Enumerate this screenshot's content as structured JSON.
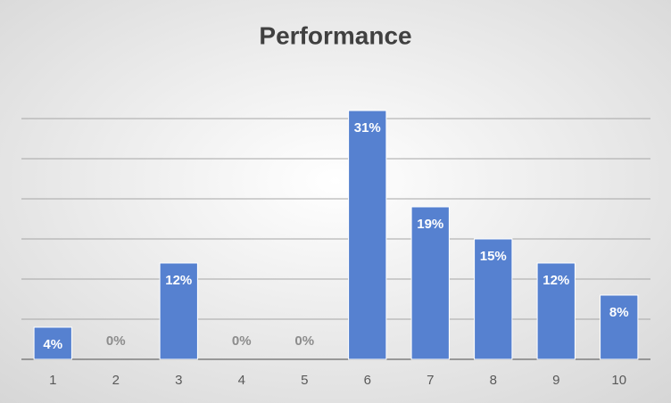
{
  "chart_data": {
    "type": "bar",
    "title": "Performance",
    "categories": [
      "1",
      "2",
      "3",
      "4",
      "5",
      "6",
      "7",
      "8",
      "9",
      "10"
    ],
    "values": [
      4,
      0,
      12,
      0,
      0,
      31,
      19,
      15,
      12,
      8
    ],
    "value_labels": [
      "4%",
      "0%",
      "12%",
      "0%",
      "0%",
      "31%",
      "19%",
      "15%",
      "12%",
      "8%"
    ],
    "color": "#5681d0",
    "ylim": [
      0,
      35
    ],
    "yticks": [
      0,
      5,
      10,
      15,
      20,
      25,
      30
    ],
    "grid": true
  }
}
